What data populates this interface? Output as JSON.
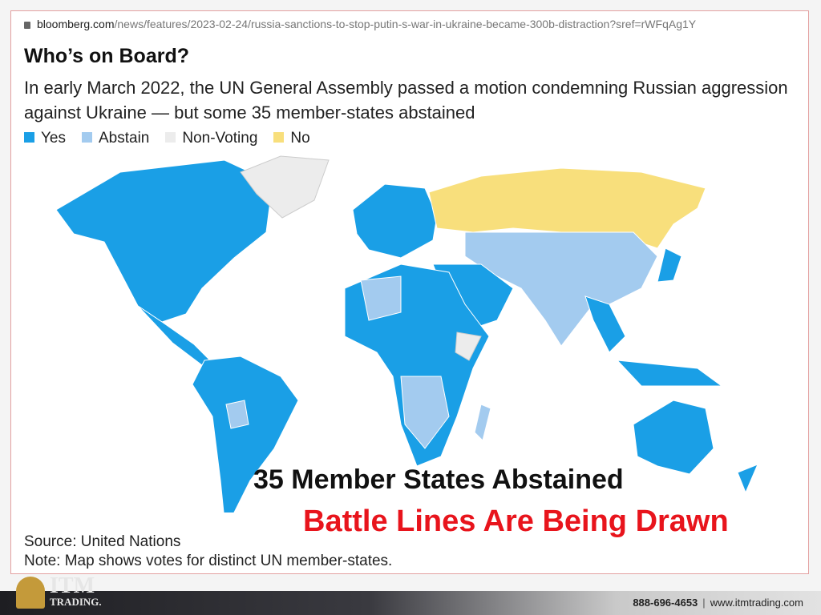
{
  "browser": {
    "domain": "bloomberg.com",
    "path": "/news/features/2023-02-24/russia-sanctions-to-stop-putin-s-war-in-ukraine-became-300b-distraction?sref=rWFqAg1Y"
  },
  "header": {
    "title": "Who’s on Board?",
    "subtitle": "In early March 2022, the UN General Assembly passed a motion condemning Russian aggression against Ukraine — but some 35 member-states abstained"
  },
  "legend": [
    {
      "label": "Yes",
      "color": "#1a9fe6"
    },
    {
      "label": "Abstain",
      "color": "#a3cbef"
    },
    {
      "label": "Non-Voting",
      "color": "#ececec"
    },
    {
      "label": "No",
      "color": "#f8df7c"
    }
  ],
  "overlay": {
    "headline": "35 Member States Abstained",
    "tagline": "Battle Lines Are Being Drawn"
  },
  "footer": {
    "source": "Source: United Nations",
    "note": "Note: Map shows votes for distinct UN member-states."
  },
  "brand": {
    "logo": "ITM",
    "logo_sub": "TRADING.",
    "phone": "888-696-4653",
    "website": "www.itmtrading.com"
  }
}
